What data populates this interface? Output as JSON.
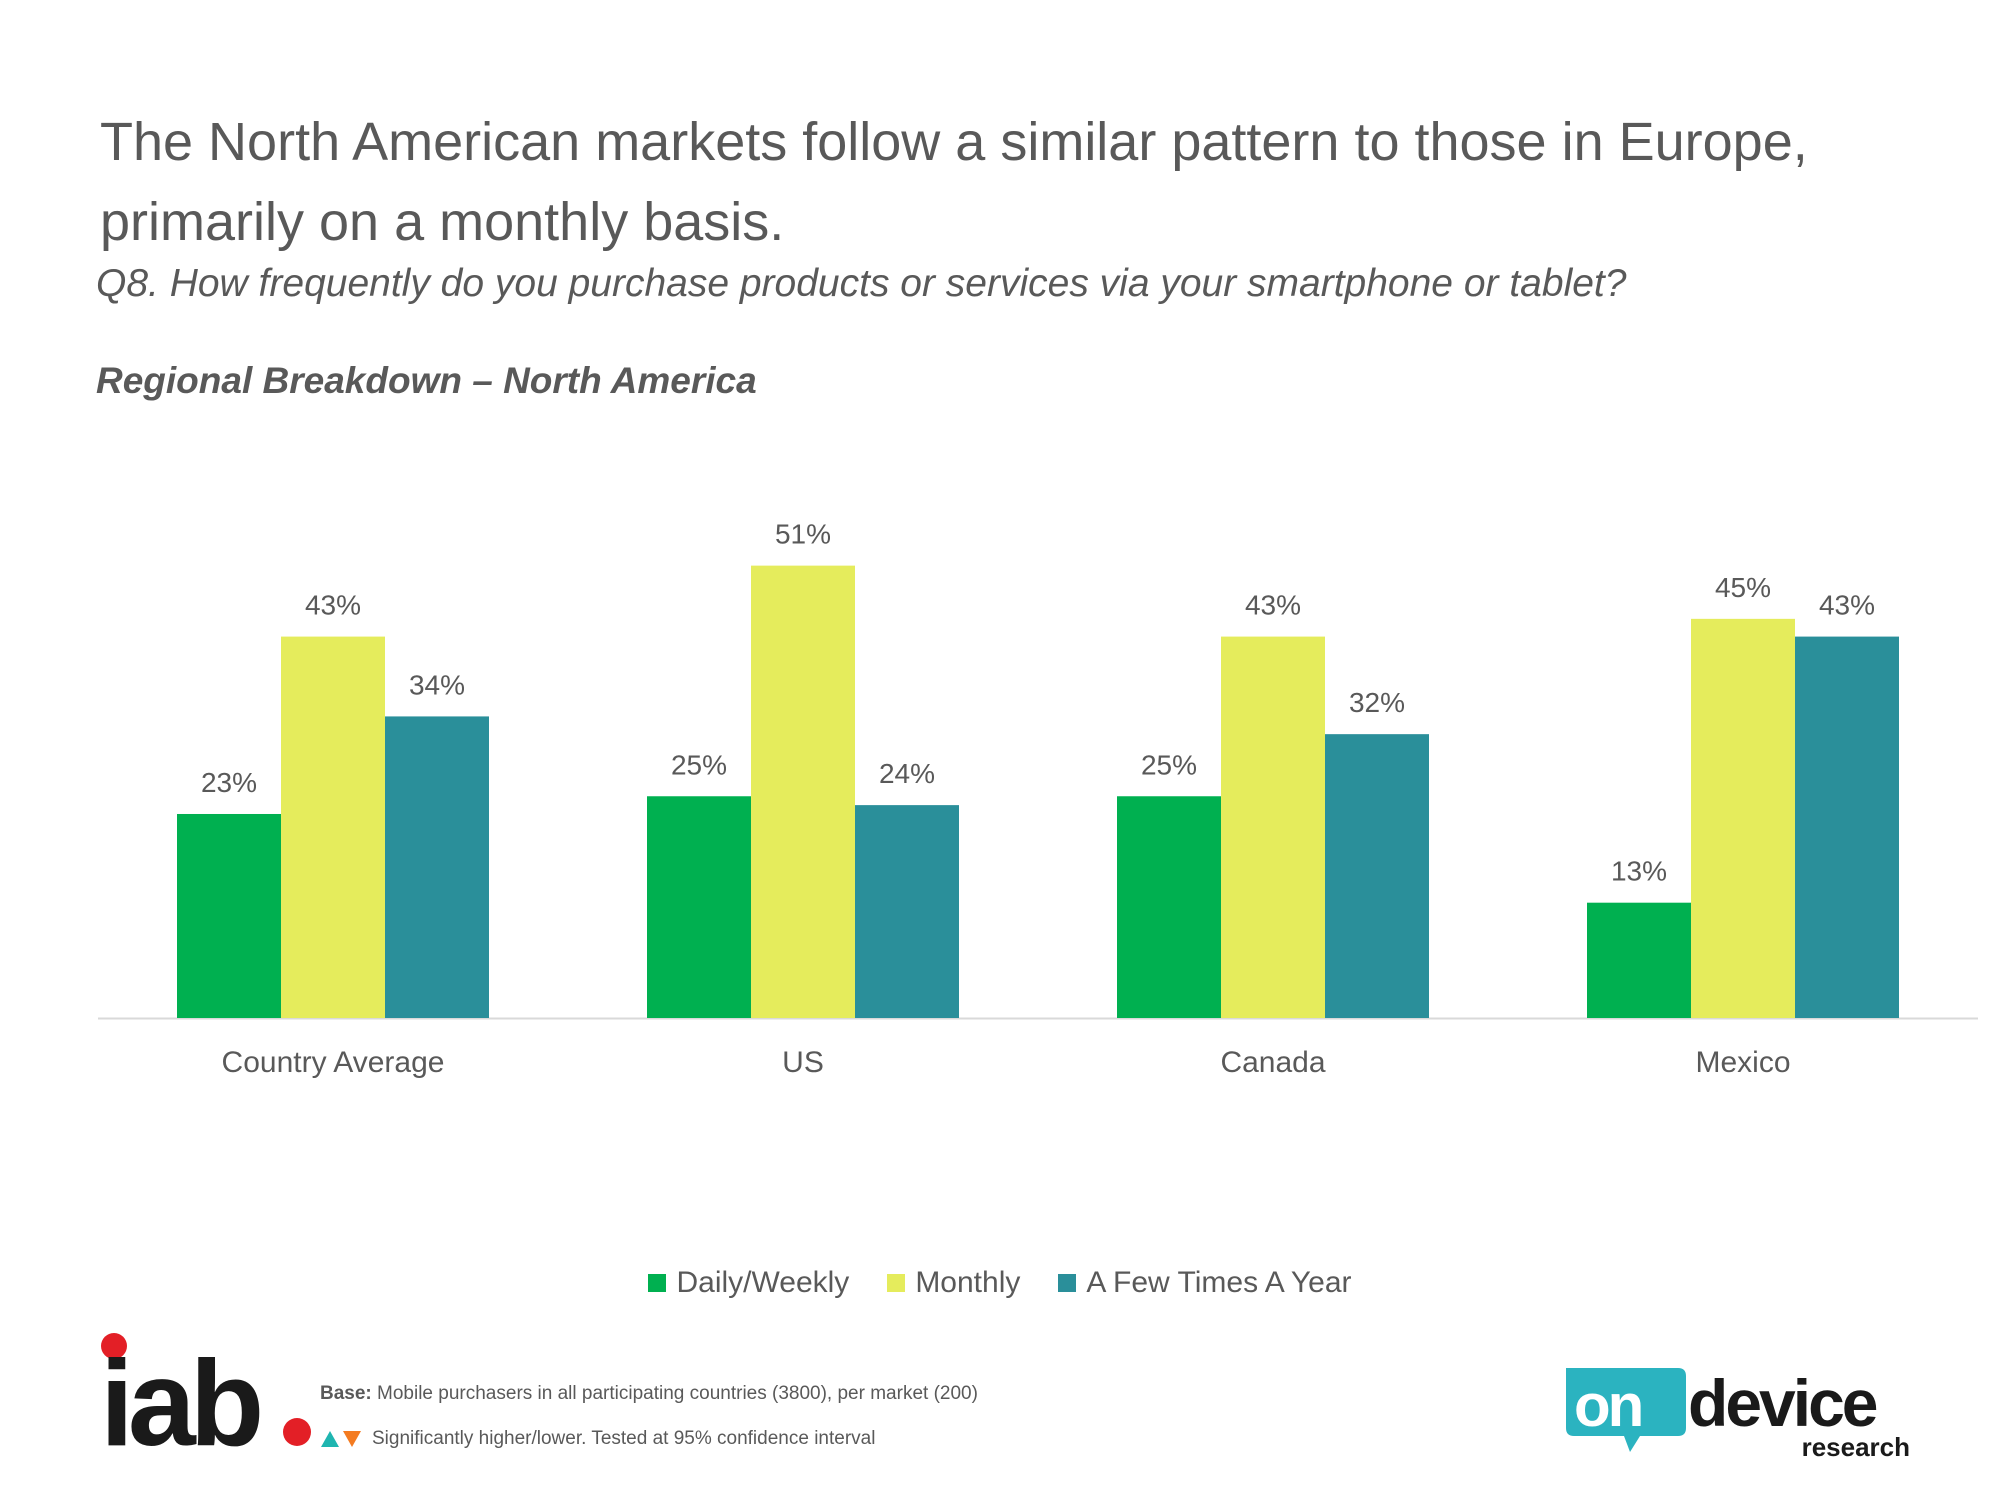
{
  "headline": "The North American markets follow a similar pattern to those in Europe, primarily on a monthly basis.",
  "question": "Q8. How frequently do you purchase products or services via your smartphone or tablet?",
  "subtitle": "Regional Breakdown – North America",
  "chart_data": {
    "type": "bar",
    "title": "Regional Breakdown – North America",
    "xlabel": "",
    "ylabel": "",
    "ylim": [
      0,
      51
    ],
    "grid": false,
    "legend_position": "bottom",
    "categories": [
      "Country Average",
      "US",
      "Canada",
      "Mexico"
    ],
    "series": [
      {
        "name": "Daily/Weekly",
        "color": "#00B050",
        "values": [
          23,
          25,
          25,
          13
        ],
        "labels": [
          "23%",
          "25%",
          "25%",
          "13%"
        ]
      },
      {
        "name": "Monthly",
        "color": "#E5EC5C",
        "values": [
          43,
          51,
          43,
          45
        ],
        "labels": [
          "43%",
          "51%",
          "43%",
          "45%"
        ]
      },
      {
        "name": "A Few Times A Year",
        "color": "#2A8F9A",
        "values": [
          34,
          24,
          32,
          43
        ],
        "labels": [
          "34%",
          "24%",
          "32%",
          "43%"
        ]
      }
    ]
  },
  "legend": [
    {
      "label": "Daily/Weekly",
      "color": "#00B050"
    },
    {
      "label": "Monthly",
      "color": "#E5EC5C"
    },
    {
      "label": "A Few Times A Year",
      "color": "#2A8F9A"
    }
  ],
  "footer": {
    "iab_logo_text": "iab.",
    "base_label": "Base:",
    "base_text": "Mobile purchasers in all participating countries (3800), per market (200)",
    "sig_text": "Significantly higher/lower. Tested at 95% confidence interval",
    "ondevice_logo_text": "on device research"
  },
  "colors": {
    "text": "#595959",
    "axis": "#D9D9D9",
    "iab_red": "#E31F26",
    "up_triangle": "#1FB5B0",
    "down_triangle": "#F47B20",
    "ondevice_teal": "#2BB3C0"
  }
}
